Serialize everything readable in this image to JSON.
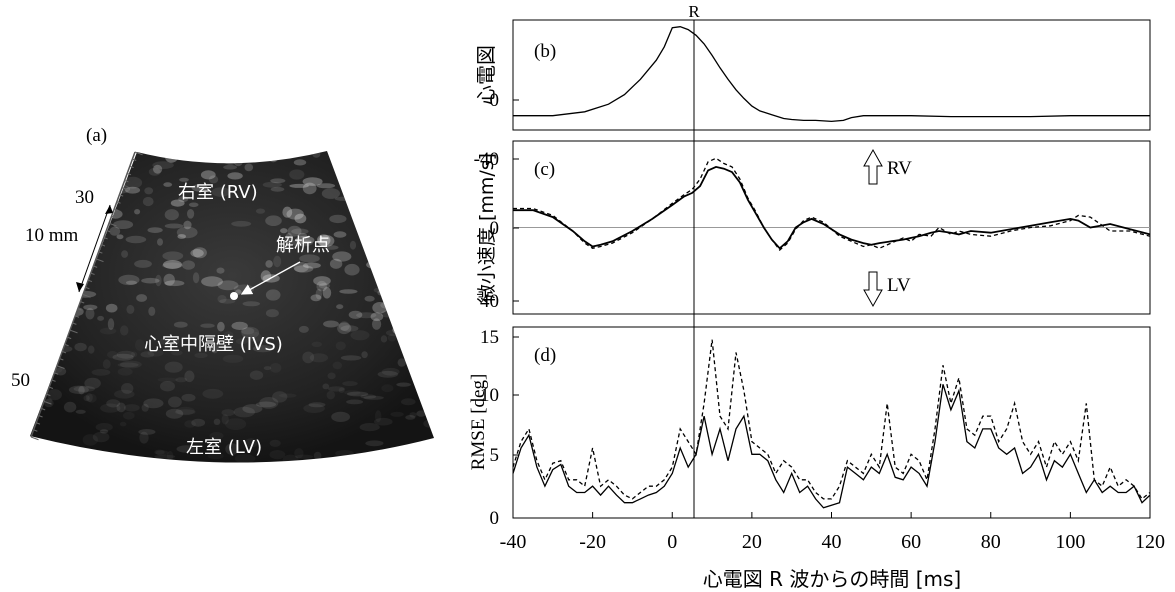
{
  "ultrasound": {
    "panel_label": "(a)",
    "labels": {
      "rv": "右室 (RV)",
      "ivs": "心室中隔壁 (IVS)",
      "lv": "左室 (LV)",
      "point": "解析点"
    },
    "scale": {
      "tick30": "30",
      "tick50": "50",
      "bar": "10 mm"
    }
  },
  "r_marker": "R",
  "xlabel": "心電図 R 波からの時間 [ms]",
  "xticks": [
    "-40",
    "-20",
    "0",
    "20",
    "40",
    "60",
    "80",
    "100",
    "120"
  ],
  "colors": {
    "line": "#000000",
    "zero": "#999999",
    "image_bg": "#1b1b1b"
  },
  "chart_data": [
    {
      "type": "line",
      "panel": "(b)",
      "ylabel": "心電図",
      "yticks": [
        "0"
      ],
      "xlim": [
        -40,
        120
      ],
      "ylim": [
        -0.15,
        1.0
      ],
      "series": [
        {
          "style": "solid",
          "x": [
            -40,
            -30,
            -22,
            -16,
            -12,
            -8,
            -4,
            -2,
            0,
            2,
            4,
            6,
            8,
            10,
            12,
            14,
            16,
            18,
            20,
            22,
            25,
            28,
            30,
            33,
            36,
            40,
            43,
            45,
            48,
            52,
            60,
            70,
            80,
            90,
            100,
            110,
            120
          ],
          "values": [
            0,
            0,
            0.04,
            0.12,
            0.22,
            0.38,
            0.58,
            0.72,
            0.92,
            0.93,
            0.9,
            0.84,
            0.75,
            0.63,
            0.5,
            0.38,
            0.27,
            0.18,
            0.1,
            0.05,
            0.01,
            -0.03,
            -0.04,
            -0.05,
            -0.05,
            -0.06,
            -0.05,
            -0.02,
            0,
            0,
            0,
            -0.01,
            -0.01,
            -0.01,
            0,
            0,
            0
          ]
        }
      ]
    },
    {
      "type": "line",
      "panel": "(c)",
      "ylabel": "微小速度 [mm/s]",
      "yticks": [
        "-40",
        "0",
        "40"
      ],
      "xlim": [
        -40,
        120
      ],
      "ylim": [
        -50,
        50
      ],
      "annotations": [
        "RV",
        "LV"
      ],
      "series": [
        {
          "style": "solid",
          "x": [
            -40,
            -35,
            -30,
            -25,
            -22,
            -20,
            -18,
            -15,
            -10,
            -5,
            0,
            3,
            5,
            7,
            9,
            11,
            13,
            15,
            17,
            19,
            21,
            23,
            25,
            27,
            29,
            31,
            33,
            35,
            38,
            42,
            45,
            48,
            50,
            52,
            55,
            58,
            60,
            62,
            65,
            67,
            70,
            72,
            75,
            80,
            85,
            90,
            95,
            100,
            102,
            105,
            110,
            115,
            120
          ],
          "values": [
            -10,
            -10,
            -6,
            2,
            8,
            11,
            10,
            8,
            2,
            -5,
            -13,
            -18,
            -20,
            -24,
            -33,
            -35,
            -34,
            -32,
            -26,
            -16,
            -8,
            0,
            7,
            12,
            8,
            0,
            -3,
            -5,
            -2,
            4,
            7,
            9,
            10,
            9,
            8,
            7,
            6,
            5,
            3,
            2,
            3,
            4,
            2,
            3,
            1,
            -1,
            -3,
            -5,
            -4,
            0,
            -2,
            1,
            4
          ]
        },
        {
          "style": "dashed",
          "x": [
            -40,
            -35,
            -30,
            -25,
            -22,
            -20,
            -18,
            -15,
            -10,
            -5,
            0,
            3,
            5,
            7,
            9,
            11,
            13,
            15,
            17,
            19,
            21,
            23,
            25,
            27,
            29,
            31,
            33,
            35,
            38,
            42,
            45,
            48,
            50,
            52,
            55,
            58,
            60,
            62,
            65,
            67,
            70,
            72,
            75,
            80,
            85,
            90,
            95,
            100,
            102,
            105,
            110,
            115,
            120
          ],
          "values": [
            -11,
            -11,
            -7,
            2,
            9,
            12,
            11,
            9,
            3,
            -5,
            -14,
            -19,
            -22,
            -28,
            -38,
            -40,
            -37,
            -35,
            -28,
            -17,
            -9,
            0,
            7,
            13,
            9,
            1,
            -4,
            -6,
            -3,
            5,
            8,
            11,
            10,
            12,
            9,
            6,
            8,
            4,
            5,
            0,
            4,
            2,
            4,
            5,
            2,
            0,
            -1,
            -4,
            -7,
            -6,
            2,
            2,
            5
          ]
        }
      ]
    },
    {
      "type": "line",
      "panel": "(d)",
      "ylabel": "RMSE [deg]",
      "yticks": [
        "0",
        "5",
        "10",
        "15"
      ],
      "xlim": [
        -40,
        120
      ],
      "ylim": [
        0,
        15
      ],
      "series": [
        {
          "style": "solid",
          "x": [
            -40,
            -38,
            -36,
            -34,
            -32,
            -30,
            -28,
            -26,
            -24,
            -22,
            -20,
            -18,
            -16,
            -14,
            -12,
            -10,
            -8,
            -6,
            -4,
            -2,
            0,
            2,
            4,
            6,
            8,
            10,
            12,
            14,
            16,
            18,
            20,
            22,
            24,
            26,
            28,
            30,
            32,
            34,
            36,
            38,
            40,
            42,
            44,
            46,
            48,
            50,
            52,
            54,
            56,
            58,
            60,
            62,
            64,
            66,
            68,
            70,
            72,
            74,
            76,
            78,
            80,
            82,
            84,
            86,
            88,
            90,
            92,
            94,
            96,
            98,
            100,
            102,
            104,
            106,
            108,
            110,
            112,
            114,
            116,
            118,
            120
          ],
          "values": [
            3.5,
            5.5,
            6.5,
            4,
            2.5,
            3.8,
            4.2,
            2.5,
            2,
            2,
            2.5,
            1.8,
            2.5,
            1.8,
            1.2,
            1.2,
            1.5,
            1.8,
            2,
            2.5,
            3.5,
            5.5,
            4,
            5,
            8,
            5,
            7,
            4.5,
            7,
            8,
            5,
            5,
            4.5,
            3,
            2,
            3.5,
            2,
            2.5,
            1.5,
            0.8,
            1,
            1.2,
            4,
            3.5,
            3,
            4,
            3.5,
            5,
            3.2,
            3,
            4,
            3.5,
            2.5,
            6,
            10.5,
            8.5,
            10,
            6,
            5.5,
            7,
            7,
            5.5,
            5,
            5.5,
            3.5,
            4,
            5,
            3,
            4.5,
            4,
            5,
            3.5,
            2,
            3,
            2,
            2.5,
            2,
            2,
            2.5,
            1.2,
            1.8
          ]
        },
        {
          "style": "dashed",
          "x": [
            -40,
            -38,
            -36,
            -34,
            -32,
            -30,
            -28,
            -26,
            -24,
            -22,
            -20,
            -18,
            -16,
            -14,
            -12,
            -10,
            -8,
            -6,
            -4,
            -2,
            0,
            2,
            4,
            6,
            8,
            10,
            12,
            14,
            16,
            18,
            20,
            22,
            24,
            26,
            28,
            30,
            32,
            34,
            36,
            38,
            40,
            42,
            44,
            46,
            48,
            50,
            52,
            54,
            56,
            58,
            60,
            62,
            64,
            66,
            68,
            70,
            72,
            74,
            76,
            78,
            80,
            82,
            84,
            86,
            88,
            90,
            92,
            94,
            96,
            98,
            100,
            102,
            104,
            106,
            108,
            110,
            112,
            114,
            116,
            118,
            120
          ],
          "values": [
            4,
            6,
            7,
            4.5,
            3,
            4.3,
            4.5,
            3,
            3,
            2.5,
            5.5,
            2.5,
            3,
            2.5,
            1.8,
            1.5,
            2,
            2.5,
            2.5,
            3,
            4,
            7,
            6,
            5,
            9,
            14,
            8,
            7,
            13,
            10,
            6,
            5.5,
            5,
            3.5,
            4.5,
            4,
            3,
            3,
            2,
            1.5,
            1.5,
            2.5,
            4.5,
            4,
            3.5,
            5,
            4,
            9,
            4,
            3.5,
            5,
            4.5,
            3,
            7,
            12,
            9,
            11,
            7,
            6.5,
            8,
            8,
            6,
            7,
            9,
            6,
            5,
            6,
            4,
            6,
            5,
            6,
            4.5,
            9,
            3,
            2.5,
            4,
            2.5,
            3,
            2.5,
            1.5,
            2
          ]
        }
      ]
    }
  ]
}
